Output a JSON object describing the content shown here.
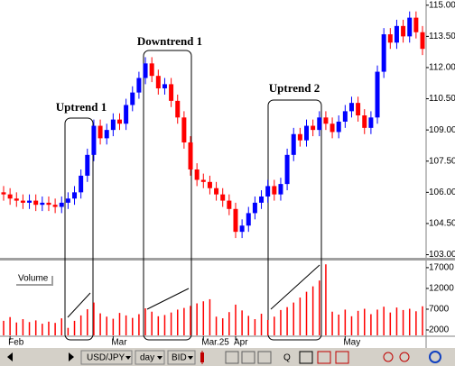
{
  "chart_data": [
    {
      "type": "candlestick",
      "categories": [
        null,
        "Feb",
        null,
        null,
        null,
        null,
        null,
        null,
        null,
        null,
        null,
        null,
        null,
        null,
        null,
        null,
        null,
        "Mar",
        null,
        null,
        null,
        null,
        null,
        null,
        null,
        null,
        null,
        null,
        null,
        null,
        null,
        "Mar.25",
        null,
        null,
        null,
        null,
        "Apr",
        null,
        null,
        null,
        null,
        null,
        null,
        null,
        null,
        null,
        null,
        null,
        null,
        null,
        null,
        null,
        null,
        "May",
        null,
        null,
        null,
        null,
        null,
        null,
        null,
        null,
        null,
        null,
        null,
        null
      ],
      "open": [
        106.0,
        105.9,
        105.7,
        105.6,
        105.5,
        105.6,
        105.4,
        105.5,
        105.4,
        105.3,
        105.5,
        105.7,
        106.0,
        106.8,
        107.8,
        109.2,
        108.6,
        109.0,
        109.5,
        109.3,
        110.2,
        110.8,
        111.5,
        112.2,
        111.6,
        111.0,
        111.2,
        110.4,
        109.6,
        108.4,
        107.1,
        106.6,
        106.5,
        106.2,
        105.9,
        105.6,
        105.2,
        104.1,
        104.4,
        105.0,
        105.5,
        105.8,
        106.3,
        105.9,
        106.4,
        107.8,
        108.8,
        108.5,
        109.2,
        109.0,
        109.6,
        109.3,
        108.9,
        109.4,
        109.9,
        110.3,
        109.7,
        109.1,
        109.6,
        111.8,
        113.6,
        113.2,
        114.0,
        113.5,
        114.4,
        113.7
      ],
      "high": [
        106.3,
        106.2,
        106.0,
        105.9,
        105.9,
        105.9,
        105.8,
        105.8,
        105.7,
        105.8,
        106.0,
        106.3,
        107.1,
        108.1,
        109.5,
        109.5,
        109.3,
        109.8,
        109.8,
        110.5,
        111.1,
        111.8,
        112.5,
        112.5,
        111.9,
        111.5,
        111.5,
        110.7,
        109.9,
        108.7,
        107.4,
        106.9,
        106.8,
        106.5,
        106.2,
        105.9,
        105.5,
        104.7,
        105.3,
        105.8,
        106.1,
        106.6,
        106.6,
        106.7,
        108.1,
        109.1,
        109.1,
        109.5,
        109.5,
        109.9,
        109.9,
        109.6,
        109.7,
        110.2,
        110.6,
        110.6,
        110.0,
        109.9,
        112.1,
        113.9,
        113.9,
        114.3,
        114.3,
        114.7,
        114.7,
        114.0
      ],
      "low": [
        105.6,
        105.4,
        105.3,
        105.2,
        105.2,
        105.1,
        105.1,
        105.1,
        105.0,
        105.0,
        105.2,
        105.4,
        105.7,
        106.5,
        107.5,
        108.3,
        108.3,
        108.7,
        109.0,
        109.0,
        109.9,
        110.5,
        111.2,
        111.3,
        110.7,
        110.7,
        110.1,
        109.3,
        108.1,
        106.8,
        106.3,
        106.2,
        105.9,
        105.6,
        105.3,
        104.9,
        103.8,
        103.8,
        104.1,
        104.7,
        105.2,
        105.5,
        105.6,
        105.6,
        106.1,
        107.5,
        108.2,
        108.2,
        108.7,
        108.7,
        109.0,
        108.6,
        108.6,
        109.1,
        109.6,
        109.4,
        108.8,
        108.8,
        109.3,
        111.5,
        112.9,
        112.9,
        113.2,
        113.2,
        113.4,
        112.6
      ],
      "close": [
        105.9,
        105.7,
        105.6,
        105.5,
        105.6,
        105.4,
        105.5,
        105.4,
        105.3,
        105.5,
        105.7,
        106.0,
        106.8,
        107.8,
        109.2,
        108.6,
        109.0,
        109.5,
        109.3,
        110.2,
        110.8,
        111.5,
        112.2,
        111.6,
        111.0,
        111.2,
        110.4,
        109.6,
        108.4,
        107.1,
        106.6,
        106.5,
        106.2,
        105.9,
        105.6,
        105.2,
        104.1,
        104.4,
        105.0,
        105.5,
        105.8,
        106.3,
        105.9,
        106.4,
        107.8,
        108.8,
        108.5,
        109.2,
        109.0,
        109.6,
        109.3,
        108.9,
        109.4,
        109.9,
        110.3,
        109.7,
        109.1,
        109.6,
        111.8,
        113.6,
        113.2,
        114.0,
        113.5,
        114.4,
        113.7,
        112.9
      ],
      "up_color": "#0000ff",
      "down_color": "#ff0000",
      "ylim": [
        102.85,
        115.25
      ],
      "yticks": [
        {
          "value": 103,
          "label": "103.00"
        },
        {
          "value": 104.5,
          "label": "104.50"
        },
        {
          "value": 106,
          "label": "106.00"
        },
        {
          "value": 107.5,
          "label": "107.50"
        },
        {
          "value": 109,
          "label": "109.00"
        },
        {
          "value": 110.5,
          "label": "110.50"
        },
        {
          "value": 112,
          "label": "112.00"
        },
        {
          "value": 113.5,
          "label": "113.50"
        },
        {
          "value": 115,
          "label": "115.00"
        }
      ],
      "annotations": [
        "Uptrend 1",
        "Downtrend 1",
        "Uptrend 2"
      ]
    },
    {
      "type": "bar",
      "title": "Volume",
      "color": "#ff0000",
      "values": [
        4200,
        5100,
        3800,
        4600,
        3900,
        4300,
        3500,
        4000,
        3700,
        4800,
        2500,
        4200,
        5500,
        7000,
        8600,
        6000,
        5200,
        4700,
        6100,
        5500,
        4900,
        5800,
        7200,
        6400,
        5300,
        5600,
        6200,
        6900,
        7300,
        7800,
        8400,
        8900,
        9400,
        5200,
        4800,
        6300,
        8100,
        6700,
        5400,
        4600,
        5900,
        4400,
        5200,
        6800,
        7500,
        8600,
        9800,
        11200,
        12500,
        13900,
        17800,
        6400,
        5700,
        6900,
        5300,
        6600,
        7100,
        5800,
        6900,
        7600,
        6200,
        7400,
        6800,
        7100,
        6500,
        7700
      ],
      "ylim": [
        700,
        18500
      ],
      "yticks": [
        2000,
        7000,
        12000,
        17000
      ]
    }
  ],
  "toolbar": {
    "symbol": "USD/JPY",
    "period": "day",
    "price": "BID",
    "zoom": "Q"
  }
}
